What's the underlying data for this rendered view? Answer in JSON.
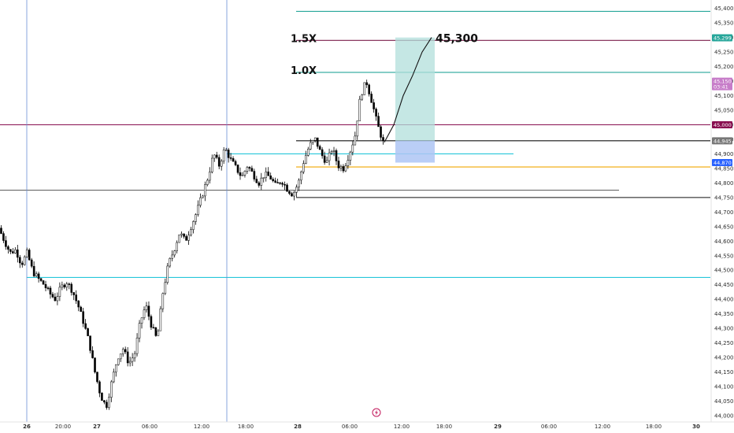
{
  "chart_data": {
    "type": "candlestick",
    "y_axis": {
      "ylim": [
        44000,
        45410
      ],
      "ticks": [
        "45,400",
        "45,350",
        "45,300",
        "45,250",
        "45,200",
        "45,150",
        "45,100",
        "45,050",
        "45,000",
        "44,950",
        "44,900",
        "44,850",
        "44,800",
        "44,750",
        "44,700",
        "44,650",
        "44,600",
        "44,550",
        "44,500",
        "44,450",
        "44,400",
        "44,350",
        "44,300",
        "44,250",
        "44,200",
        "44,150",
        "44,100",
        "44,050",
        "44,000"
      ]
    },
    "x_axis": {
      "ticks": [
        {
          "label": "26",
          "bold": true
        },
        {
          "label": "20:00",
          "bold": false
        },
        {
          "label": "27",
          "bold": true
        },
        {
          "label": "06:00",
          "bold": false
        },
        {
          "label": "12:00",
          "bold": false
        },
        {
          "label": "18:00",
          "bold": false
        },
        {
          "label": "28",
          "bold": true
        },
        {
          "label": "06:00",
          "bold": false
        },
        {
          "label": "12:00",
          "bold": false
        },
        {
          "label": "18:00",
          "bold": false
        },
        {
          "label": "29",
          "bold": true
        },
        {
          "label": "06:00",
          "bold": false
        },
        {
          "label": "12:00",
          "bold": false
        },
        {
          "label": "18:00",
          "bold": false
        },
        {
          "label": "30",
          "bold": true
        }
      ]
    },
    "price_path": [
      44645,
      44600,
      44560,
      44570,
      44520,
      44560,
      44495,
      44470,
      44450,
      44420,
      44400,
      44440,
      44460,
      44430,
      44380,
      44320,
      44250,
      44150,
      44070,
      44030,
      44120,
      44200,
      44230,
      44180,
      44210,
      44320,
      44380,
      44310,
      44260,
      44420,
      44520,
      44570,
      44630,
      44600,
      44650,
      44700,
      44760,
      44820,
      44900,
      44860,
      44920,
      44880,
      44850,
      44820,
      44860,
      44830,
      44800,
      44830,
      44820,
      44790,
      44810,
      44780,
      44760,
      44800,
      44880,
      44930,
      44950,
      44900,
      44870,
      44920,
      44860,
      44850,
      44900,
      44960,
      45100,
      45150,
      45080,
      45000,
      44940
    ],
    "projection_path": [
      44940,
      45000,
      45100,
      45170,
      45250,
      45300
    ],
    "horizontal_levels": [
      {
        "price": 45390,
        "color": "#26a69a"
      },
      {
        "price": 45290,
        "color": "#7b1f4b"
      },
      {
        "price": 45180,
        "color": "#26a69a"
      },
      {
        "price": 45000,
        "color": "#880e4f"
      },
      {
        "price": 44945,
        "color": "#111111"
      },
      {
        "price": 44900,
        "color": "#26c6da"
      },
      {
        "price": 44855,
        "color": "#f0a800"
      },
      {
        "price": 44775,
        "color": "#555555"
      },
      {
        "price": 44750,
        "color": "#111111"
      },
      {
        "price": 44475,
        "color": "#26c6da"
      }
    ],
    "target_zone": {
      "top": 45300,
      "bottom": 44945,
      "color": "#b2dfdb"
    },
    "stop_zone": {
      "top": 44945,
      "bottom": 44870,
      "color": "#aec6f4"
    },
    "annotations": [
      {
        "text": "1.5X"
      },
      {
        "text": "45,300"
      },
      {
        "text": "1.0X"
      }
    ],
    "price_badges": [
      {
        "label": "45,299",
        "sub": "",
        "price": 45299,
        "color": "#26a69a"
      },
      {
        "label": "45,150",
        "sub": "03:41",
        "price": 45150,
        "color": "#c77dc9"
      },
      {
        "label": "45,000",
        "sub": "",
        "price": 45000,
        "color": "#880e4f"
      },
      {
        "label": "44,945",
        "sub": "",
        "price": 44945,
        "color": "#777777"
      },
      {
        "label": "44,870",
        "sub": "",
        "price": 44870,
        "color": "#2962ff"
      }
    ],
    "session_separators": 2,
    "grid": false
  },
  "colors": {
    "candle_up": "#ffffff",
    "candle_down": "#000000",
    "candle_border": "#000000",
    "separator": "#6a8fd6",
    "event_icon": "#c2185b"
  },
  "event_icon": "lightning-icon"
}
